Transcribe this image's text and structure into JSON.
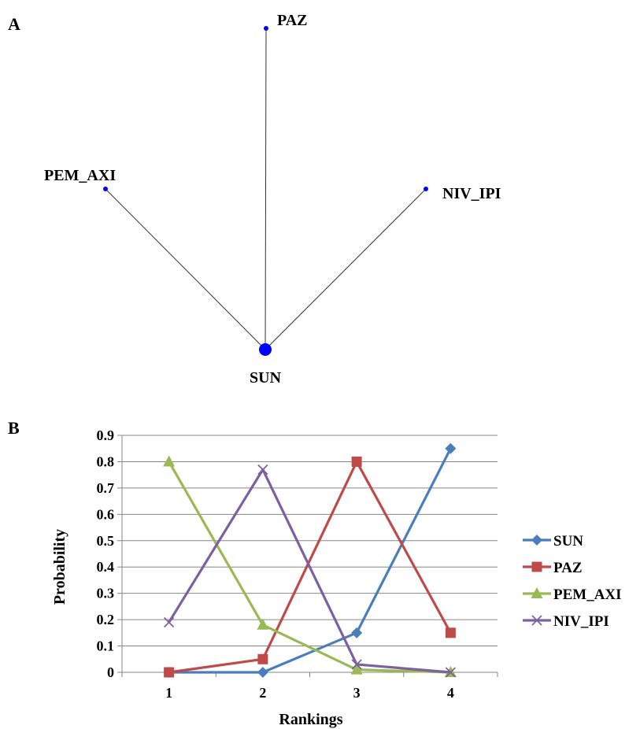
{
  "panel_a": {
    "label": "A",
    "network": {
      "nodes": [
        {
          "id": "PAZ",
          "label": "PAZ",
          "size": "small"
        },
        {
          "id": "PEM_AXI",
          "label": "PEM_AXI",
          "size": "small"
        },
        {
          "id": "NIV_IPI",
          "label": "NIV_IPI",
          "size": "small"
        },
        {
          "id": "SUN",
          "label": "SUN",
          "size": "large"
        }
      ],
      "edges": [
        {
          "from": "SUN",
          "to": "PAZ"
        },
        {
          "from": "SUN",
          "to": "PEM_AXI"
        },
        {
          "from": "SUN",
          "to": "NIV_IPI"
        }
      ],
      "node_color": "#0000ff",
      "edge_color": "#333333"
    }
  },
  "panel_b": {
    "label": "B"
  },
  "chart_data": {
    "type": "line",
    "xlabel": "Rankings",
    "ylabel": "Probability",
    "categories": [
      "1",
      "2",
      "3",
      "4"
    ],
    "ylim": [
      0,
      0.9
    ],
    "yticks": [
      "0",
      "0.1",
      "0.2",
      "0.3",
      "0.4",
      "0.5",
      "0.6",
      "0.7",
      "0.8",
      "0.9"
    ],
    "grid": true,
    "legend_position": "right",
    "series": [
      {
        "name": "SUN",
        "values": [
          0.0,
          0.0,
          0.15,
          0.85
        ],
        "color": "#4a7ebb",
        "marker": "diamond"
      },
      {
        "name": "PAZ",
        "values": [
          0.0,
          0.05,
          0.8,
          0.15
        ],
        "color": "#be4b48",
        "marker": "square"
      },
      {
        "name": "PEM_AXI",
        "values": [
          0.8,
          0.18,
          0.01,
          0.0
        ],
        "color": "#98b954",
        "marker": "triangle"
      },
      {
        "name": "NIV_IPI",
        "values": [
          0.19,
          0.77,
          0.03,
          0.0
        ],
        "color": "#7d60a0",
        "marker": "x"
      }
    ]
  }
}
